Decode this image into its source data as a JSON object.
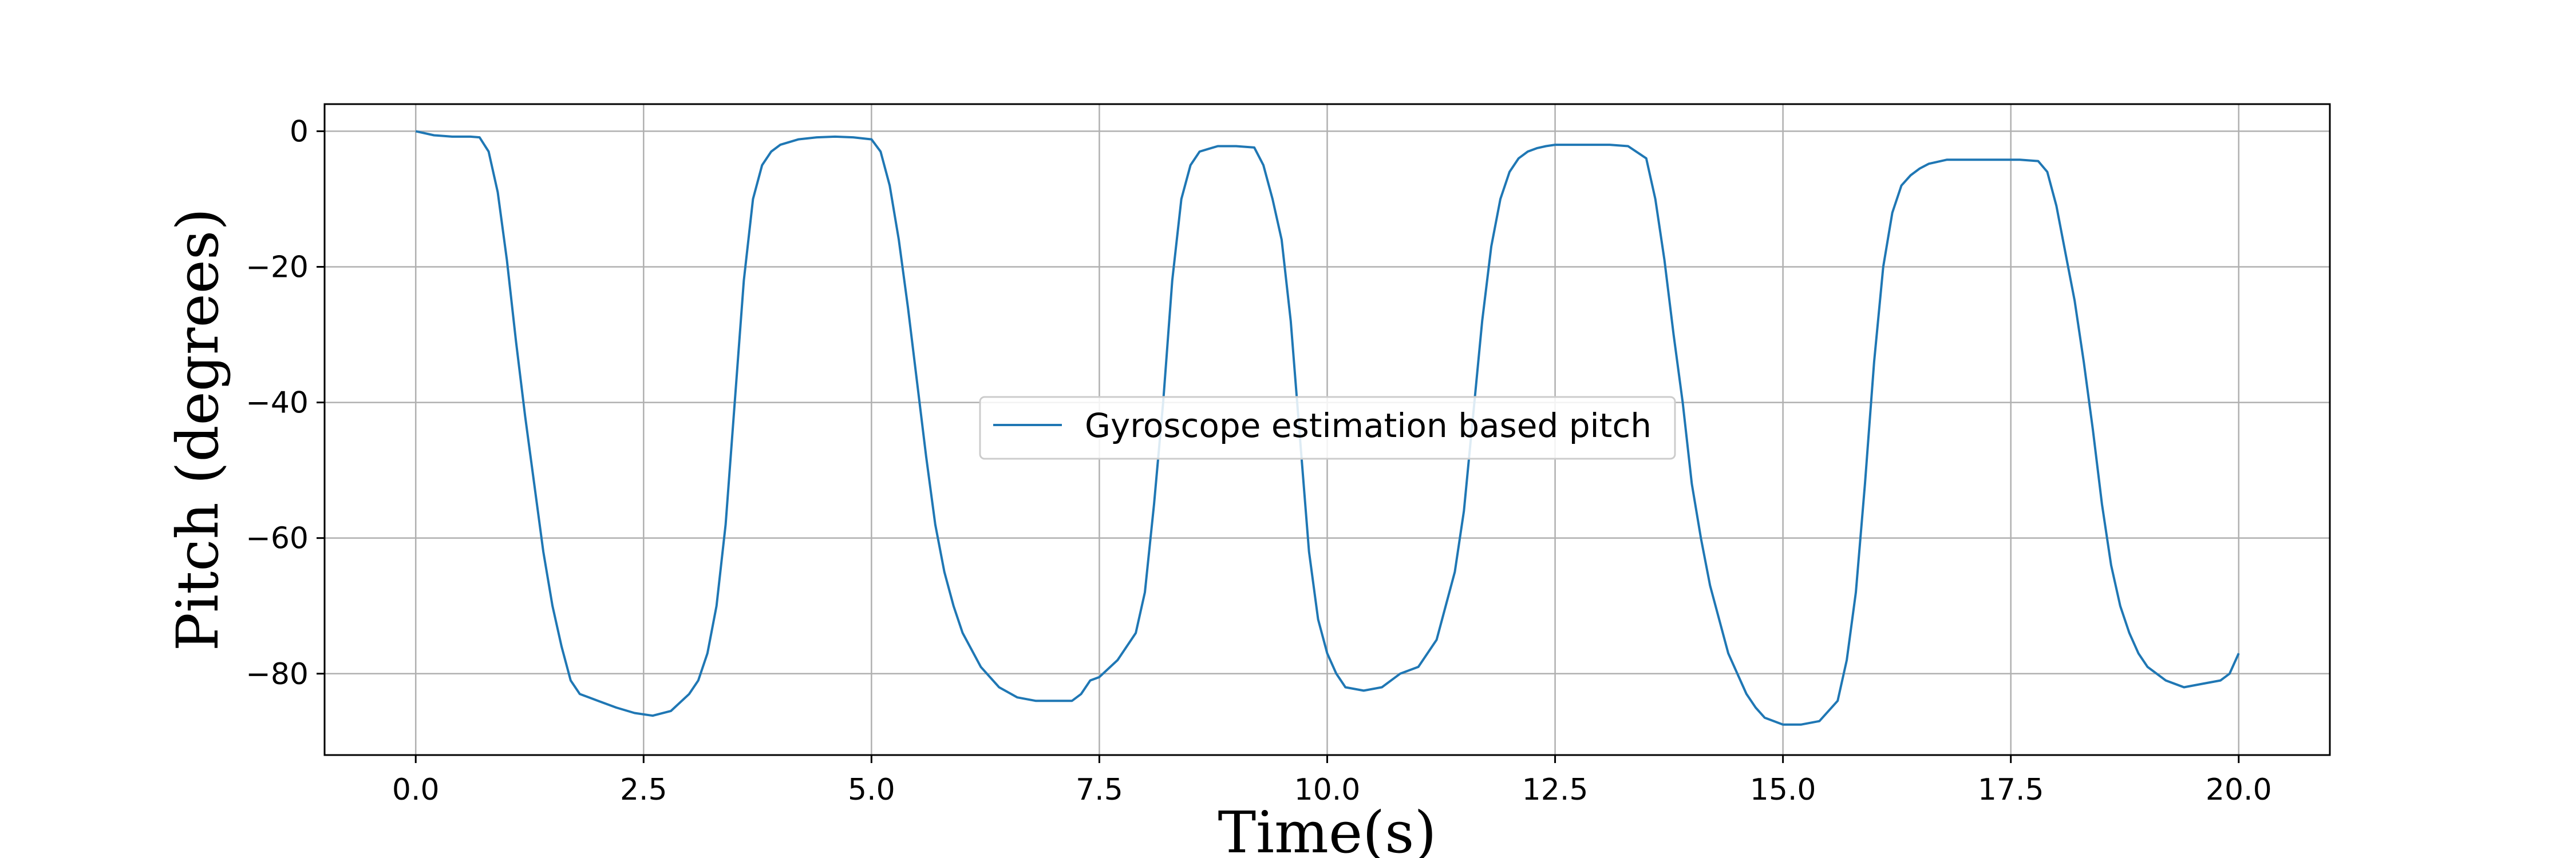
{
  "chart_data": {
    "type": "line",
    "title": "",
    "xlabel": "Time(s)",
    "ylabel": "Pitch (degrees)",
    "xlim": [
      -1.0,
      21.0
    ],
    "ylim": [
      -92,
      4
    ],
    "xticks": [
      0.0,
      2.5,
      5.0,
      7.5,
      10.0,
      12.5,
      15.0,
      17.5,
      20.0
    ],
    "xtick_labels": [
      "0.0",
      "2.5",
      "5.0",
      "7.5",
      "10.0",
      "12.5",
      "15.0",
      "17.5",
      "20.0"
    ],
    "yticks": [
      0,
      -20,
      -40,
      -60,
      -80
    ],
    "ytick_labels": [
      "0",
      "−20",
      "−40",
      "−60",
      "−80"
    ],
    "grid": true,
    "legend_position": "center",
    "series": [
      {
        "name": "Gyroscope estimation based pitch",
        "color": "#1f77b4",
        "x": [
          0.0,
          0.2,
          0.4,
          0.6,
          0.7,
          0.8,
          0.9,
          1.0,
          1.1,
          1.2,
          1.3,
          1.4,
          1.5,
          1.6,
          1.7,
          1.8,
          1.9,
          2.0,
          2.2,
          2.4,
          2.6,
          2.8,
          3.0,
          3.1,
          3.2,
          3.3,
          3.4,
          3.5,
          3.6,
          3.7,
          3.8,
          3.9,
          4.0,
          4.2,
          4.4,
          4.6,
          4.8,
          5.0,
          5.1,
          5.2,
          5.3,
          5.4,
          5.5,
          5.6,
          5.7,
          5.8,
          5.9,
          6.0,
          6.2,
          6.4,
          6.6,
          6.8,
          7.0,
          7.2,
          7.3,
          7.4,
          7.5,
          7.7,
          7.9,
          8.0,
          8.1,
          8.2,
          8.3,
          8.4,
          8.5,
          8.6,
          8.7,
          8.8,
          9.0,
          9.2,
          9.3,
          9.4,
          9.5,
          9.6,
          9.7,
          9.8,
          9.9,
          10.0,
          10.1,
          10.2,
          10.4,
          10.6,
          10.8,
          11.0,
          11.2,
          11.3,
          11.4,
          11.5,
          11.6,
          11.7,
          11.8,
          11.9,
          12.0,
          12.1,
          12.2,
          12.3,
          12.4,
          12.5,
          12.7,
          12.9,
          13.1,
          13.3,
          13.5,
          13.6,
          13.7,
          13.8,
          13.9,
          14.0,
          14.1,
          14.2,
          14.3,
          14.4,
          14.5,
          14.6,
          14.7,
          14.8,
          15.0,
          15.2,
          15.4,
          15.6,
          15.7,
          15.8,
          15.9,
          16.0,
          16.1,
          16.2,
          16.3,
          16.4,
          16.5,
          16.6,
          16.8,
          17.0,
          17.2,
          17.4,
          17.6,
          17.8,
          17.9,
          18.0,
          18.1,
          18.2,
          18.3,
          18.4,
          18.5,
          18.6,
          18.7,
          18.8,
          18.9,
          19.0,
          19.2,
          19.4,
          19.6,
          19.8,
          19.9,
          20.0
        ],
        "y": [
          0,
          -0.6,
          -0.8,
          -0.8,
          -0.9,
          -3,
          -9,
          -19,
          -31,
          -42,
          -52,
          -62,
          -70,
          -76,
          -81,
          -83,
          -83.5,
          -84,
          -85,
          -85.8,
          -86.2,
          -85.5,
          -83,
          -81,
          -77,
          -70,
          -58,
          -40,
          -22,
          -10,
          -5,
          -3,
          -2,
          -1.2,
          -0.9,
          -0.8,
          -0.9,
          -1.2,
          -3,
          -8,
          -16,
          -26,
          -37,
          -48,
          -58,
          -65,
          -70,
          -74,
          -79,
          -82,
          -83.5,
          -84,
          -84,
          -84,
          -83,
          -81,
          -80.5,
          -78,
          -74,
          -68,
          -55,
          -40,
          -22,
          -10,
          -5,
          -3,
          -2.6,
          -2.2,
          -2.2,
          -2.4,
          -5,
          -10,
          -16,
          -28,
          -45,
          -62,
          -72,
          -77,
          -80,
          -82,
          -82.5,
          -82,
          -80,
          -79,
          -75,
          -70,
          -65,
          -56,
          -42,
          -28,
          -17,
          -10,
          -6,
          -4,
          -3,
          -2.5,
          -2.2,
          -2,
          -2,
          -2,
          -2,
          -2.2,
          -4,
          -10,
          -19,
          -30,
          -40,
          -52,
          -60,
          -67,
          -72,
          -77,
          -80,
          -83,
          -85,
          -86.5,
          -87.5,
          -87.5,
          -87,
          -84,
          -78,
          -68,
          -52,
          -34,
          -20,
          -12,
          -8,
          -6.5,
          -5.5,
          -4.8,
          -4.2,
          -4.2,
          -4.2,
          -4.2,
          -4.2,
          -4.4,
          -6,
          -11,
          -18,
          -25,
          -34,
          -44,
          -55,
          -64,
          -70,
          -74,
          -77,
          -79,
          -81,
          -82,
          -81.5,
          -81,
          -80,
          -77
        ]
      }
    ]
  }
}
